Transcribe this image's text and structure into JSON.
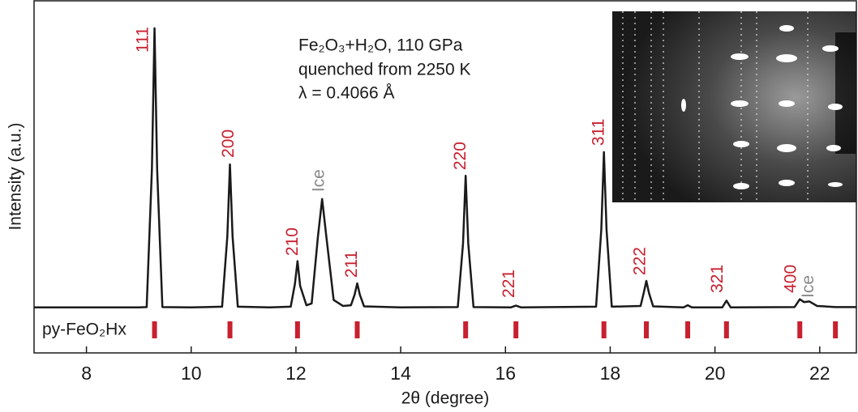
{
  "chart_data": {
    "type": "line",
    "x_label": "2θ (degree)",
    "y_label": "Intensity (a.u.)",
    "xlim": [
      7,
      22.7
    ],
    "ylim": [
      0,
      100
    ],
    "xticks": [
      8,
      10,
      12,
      14,
      16,
      18,
      20,
      22
    ],
    "info_text": [
      "Fe₂O₃+H₂O, 110 GPa",
      "quenched from 2250 K",
      "λ = 0.4066 Å"
    ],
    "series": [
      {
        "color": "#1a1a1a",
        "x": [
          7,
          8,
          9,
          9.15,
          9.25,
          9.3,
          9.35,
          9.45,
          10,
          10.59,
          10.69,
          10.74,
          10.79,
          10.89,
          11.5,
          11.9,
          11.98,
          12.03,
          12.08,
          12.2,
          12.3,
          12.42,
          12.5,
          12.58,
          12.72,
          12.9,
          13.05,
          13.12,
          13.17,
          13.22,
          13.3,
          14,
          15.09,
          15.19,
          15.24,
          15.29,
          15.39,
          16.1,
          16.2,
          16.3,
          17.73,
          17.83,
          17.88,
          17.93,
          18.03,
          18.58,
          18.64,
          18.69,
          18.74,
          18.82,
          19.4,
          19.48,
          19.56,
          20.14,
          20.22,
          20.3,
          21.52,
          21.62,
          21.7,
          21.8,
          21.95,
          22.3,
          22.7
        ],
        "values": [
          12.9,
          12.9,
          12.9,
          13,
          52,
          92,
          52,
          13,
          12.9,
          13.1,
          33,
          53.4,
          33,
          13.1,
          12.9,
          13.1,
          19.5,
          26,
          19,
          13.5,
          14,
          33,
          43.6,
          33,
          15,
          13.3,
          13.5,
          16.5,
          19.7,
          16.5,
          13.2,
          12.9,
          13,
          31,
          50.2,
          31,
          13,
          12.9,
          13.4,
          12.9,
          13.1,
          35,
          56.9,
          35,
          13.1,
          13.3,
          17,
          20.4,
          17,
          13.2,
          12.9,
          13.5,
          12.9,
          12.9,
          14.8,
          12.9,
          13,
          15.2,
          14.4,
          14.6,
          13.3,
          13,
          13
        ]
      }
    ],
    "annotations": [
      {
        "text": "111",
        "x": 9.09,
        "y": 85.1,
        "color": "#c8202f"
      },
      {
        "text": "200",
        "x": 10.72,
        "y": 55.3,
        "color": "#c8202f"
      },
      {
        "text": "210",
        "x": 11.95,
        "y": 27.5,
        "color": "#c8202f"
      },
      {
        "text": "Ice",
        "x": 12.45,
        "y": 45.6,
        "color": "#8a8a8a"
      },
      {
        "text": "211",
        "x": 13.08,
        "y": 21.3,
        "color": "#c8202f"
      },
      {
        "text": "220",
        "x": 15.15,
        "y": 51.8,
        "color": "#c8202f"
      },
      {
        "text": "221",
        "x": 16.08,
        "y": 15.6,
        "color": "#c8202f"
      },
      {
        "text": "311",
        "x": 17.79,
        "y": 58.7,
        "color": "#c8202f"
      },
      {
        "text": "222",
        "x": 18.58,
        "y": 22,
        "color": "#c8202f"
      },
      {
        "text": "321",
        "x": 20.06,
        "y": 17,
        "color": "#c8202f"
      },
      {
        "text": "400",
        "x": 21.46,
        "y": 17,
        "color": "#c8202f"
      },
      {
        "text": "Ice",
        "x": 21.79,
        "y": 15.6,
        "color": "#8a8a8a"
      }
    ],
    "reflections": {
      "name": "py-FeO₂Hx",
      "color": "#c8202f",
      "positions": [
        9.3,
        10.74,
        12.03,
        13.17,
        15.24,
        16.2,
        17.88,
        18.69,
        19.48,
        20.22,
        21.62,
        22.3
      ]
    }
  }
}
